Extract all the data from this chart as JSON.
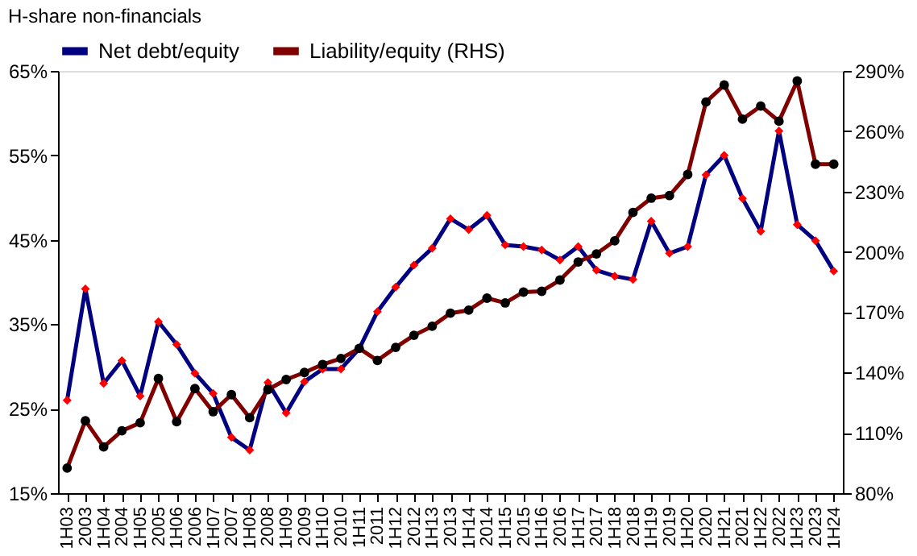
{
  "chart_data": {
    "type": "line",
    "title": "H-share non-financials",
    "categories": [
      "1H03",
      "2003",
      "1H04",
      "2004",
      "1H05",
      "2005",
      "1H06",
      "2006",
      "1H07",
      "2007",
      "1H08",
      "2008",
      "1H09",
      "2009",
      "1H10",
      "2010",
      "1H11",
      "2011",
      "1H12",
      "2012",
      "1H13",
      "2013",
      "1H14",
      "2014",
      "1H15",
      "2015",
      "1H16",
      "2016",
      "1H17",
      "2017",
      "1H18",
      "2018",
      "1H19",
      "2019",
      "1H20",
      "2020",
      "1H21",
      "2021",
      "1H22",
      "2022",
      "1H23",
      "2023",
      "1H24"
    ],
    "series": [
      {
        "name": "Net debt/equity",
        "color": "#000080",
        "marker": "diamond",
        "values": [
          26,
          39.2,
          28,
          30.7,
          26.5,
          35.3,
          32.6,
          29.2,
          26.8,
          21.6,
          20.1,
          28.1,
          24.5,
          28.2,
          29.7,
          29.7,
          32.1,
          36.5,
          39.4,
          42,
          44,
          47.5,
          46.2,
          47.9,
          44.4,
          44.2,
          43.8,
          42.6,
          44.2,
          41.4,
          40.7,
          40.3,
          47.2,
          43.4,
          44.2,
          52.7,
          55,
          49.9,
          46,
          57.9,
          46.8,
          44.9,
          41.3
        ]
      },
      {
        "name": "Liability/equity (RHS)",
        "color": "#800000",
        "marker": "circle",
        "axis": "y2",
        "values": [
          92.5,
          116,
          103,
          111,
          115,
          137,
          115.5,
          132,
          120.5,
          129,
          117.5,
          131.5,
          136.5,
          140,
          144,
          147,
          152,
          146,
          152.5,
          158.5,
          163,
          169.5,
          171,
          177,
          174.6,
          180,
          180.4,
          186,
          195,
          199,
          205.5,
          219.6,
          226.7,
          228,
          238.5,
          274.5,
          283,
          266,
          272.5,
          265,
          285,
          243.6,
          243.6
        ]
      }
    ],
    "ylim": [
      15,
      65
    ],
    "yticks": [
      {
        "value": 15,
        "label": "15%"
      },
      {
        "value": 25,
        "label": "25%"
      },
      {
        "value": 35,
        "label": "35%"
      },
      {
        "value": 45,
        "label": "45%"
      },
      {
        "value": 55,
        "label": "55%"
      },
      {
        "value": 65,
        "label": "65%"
      }
    ],
    "y2lim": [
      80,
      290
    ],
    "y2ticks": [
      {
        "value": 80,
        "label": "80%"
      },
      {
        "value": 110,
        "label": "110%"
      },
      {
        "value": 140,
        "label": "140%"
      },
      {
        "value": 170,
        "label": "170%"
      },
      {
        "value": 200,
        "label": "200%"
      },
      {
        "value": 230,
        "label": "230%"
      },
      {
        "value": 260,
        "label": "260%"
      },
      {
        "value": 290,
        "label": "290%"
      }
    ],
    "legend": "top",
    "grid": false
  }
}
